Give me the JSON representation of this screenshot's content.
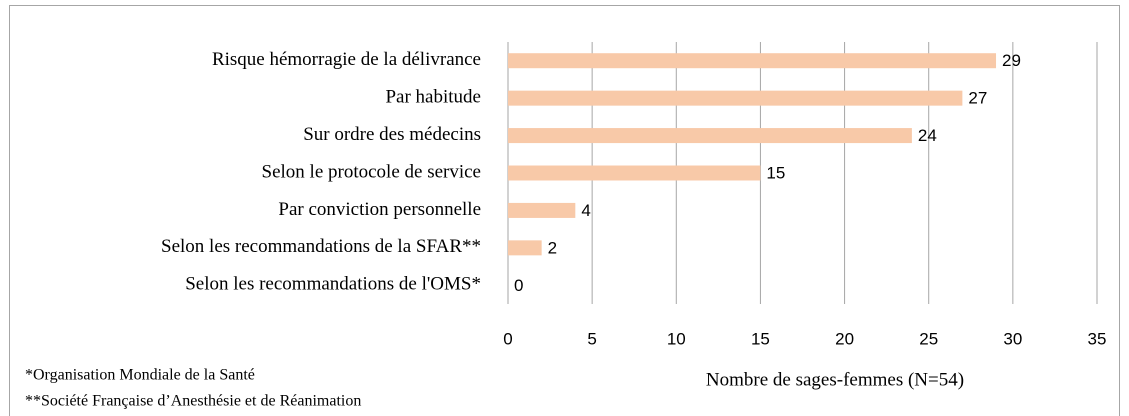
{
  "chart_data": {
    "type": "bar",
    "orientation": "horizontal",
    "categories": [
      "Risque hémorragie de la délivrance",
      "Par habitude",
      "Sur ordre des médecins",
      "Selon le protocole de service",
      "Par conviction personnelle",
      "Selon les recommandations de la SFAR**",
      "Selon les recommandations de l'OMS*"
    ],
    "values": [
      29,
      27,
      24,
      15,
      4,
      2,
      0
    ],
    "color": "#f8c9a8",
    "xlim": [
      0,
      35
    ],
    "xticks": [
      0,
      5,
      10,
      15,
      20,
      25,
      30,
      35
    ],
    "grid": true,
    "x_label": "Nombre de sages-femmes (N=54)",
    "notes": [
      "*Organisation Mondiale de la Santé",
      "**Société Française d’Anesthésie et de Réanimation"
    ]
  }
}
